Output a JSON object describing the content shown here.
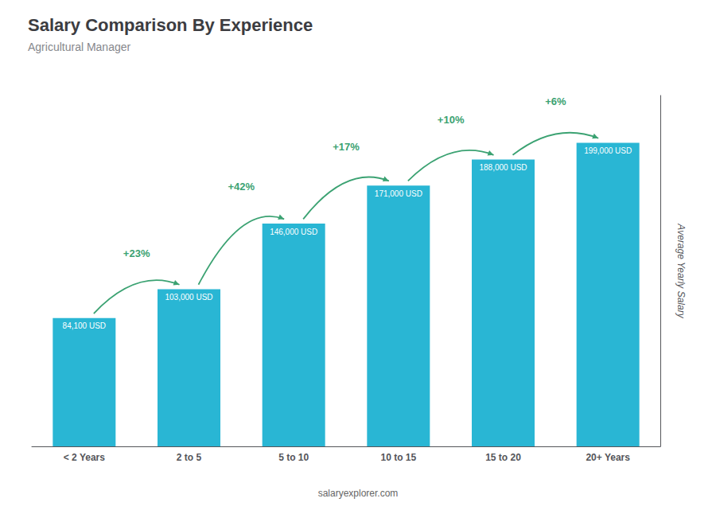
{
  "chart_data": {
    "type": "bar",
    "title": "Salary Comparison By Experience",
    "subtitle": "Agricultural Manager",
    "categories": [
      "< 2 Years",
      "2 to 5",
      "5 to 10",
      "10 to 15",
      "15 to 20",
      "20+ Years"
    ],
    "values": [
      84100,
      103000,
      146000,
      171000,
      188000,
      199000
    ],
    "value_labels": [
      "84,100 USD",
      "103,000 USD",
      "146,000 USD",
      "171,000 USD",
      "188,000 USD",
      "199,000 USD"
    ],
    "data_labels": true,
    "color": "#29b6d4",
    "ylabel": "Average Yearly Salary",
    "ylim": [
      0,
      230000
    ],
    "annotations": [
      "+23%",
      "+42%",
      "+17%",
      "+10%",
      "+6%"
    ],
    "footer": "salaryexplorer.com",
    "grid": false,
    "tick_labels": "x"
  }
}
